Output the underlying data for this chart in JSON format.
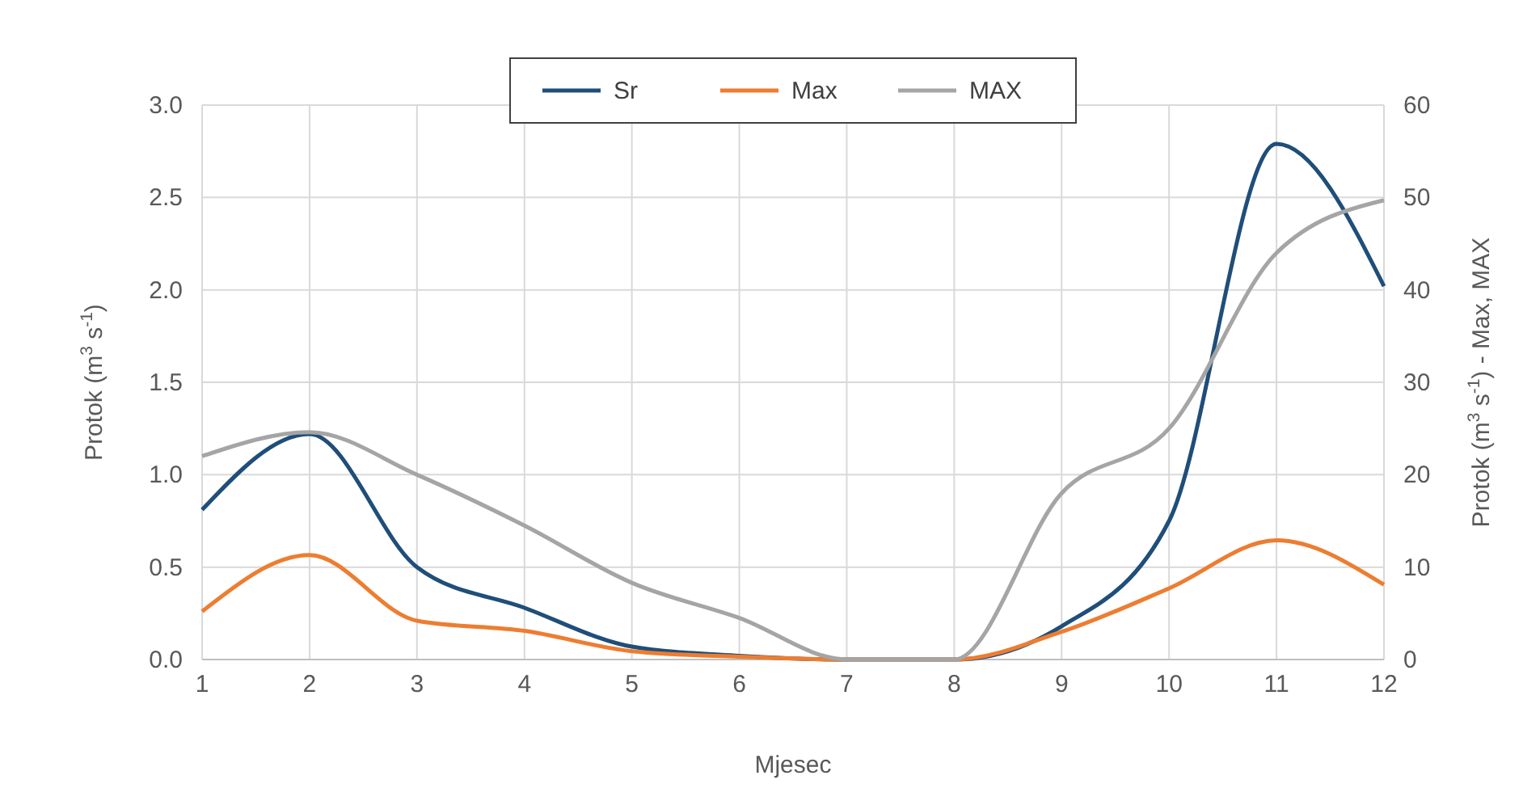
{
  "chart_data": {
    "type": "line",
    "xlabel": "Mjesec",
    "ylabel": "Protok (m$^{3}$ s$^{-1}$)",
    "y2label": "Protok (m$^{3}$ s$^{-1}$) - Max, MAX",
    "x": [
      1,
      2,
      3,
      4,
      5,
      6,
      7,
      8,
      9,
      10,
      11,
      12
    ],
    "xlim": [
      1,
      12
    ],
    "xticks": [
      1,
      2,
      3,
      4,
      5,
      6,
      7,
      8,
      9,
      10,
      11,
      12
    ],
    "ylim": [
      0,
      3
    ],
    "yticks": [
      {
        "value": 0,
        "label": "0.0"
      },
      {
        "value": 0.5,
        "label": "0.5"
      },
      {
        "value": 1,
        "label": "1.0"
      },
      {
        "value": 1.5,
        "label": "1.5"
      },
      {
        "value": 2,
        "label": "2.0"
      },
      {
        "value": 2.5,
        "label": "2.5"
      },
      {
        "value": 3,
        "label": "3.0"
      }
    ],
    "y2lim": [
      0,
      60
    ],
    "y2ticks": [
      0,
      10,
      20,
      30,
      40,
      50,
      60
    ],
    "grid": true,
    "legend": "top",
    "line_style": "solid",
    "series": [
      {
        "name": "Sr",
        "color": "#1f4e79",
        "values": [
          0.81,
          1.22,
          0.5,
          0.28,
          0.07,
          0.02,
          0,
          0,
          0.18,
          0.75,
          2.79,
          2.02
        ]
      },
      {
        "name": "Max",
        "color": "#ed7d31",
        "axis": "y2",
        "values": [
          5.2,
          11.3,
          4.2,
          3.1,
          0.9,
          0.3,
          0,
          0,
          3,
          7.7,
          12.9,
          8.1
        ]
      },
      {
        "name": "MAX",
        "color": "#a5a5a5",
        "axis": "y2",
        "values": [
          22,
          24.6,
          20,
          14.5,
          8.3,
          4.5,
          0,
          0,
          18,
          25,
          44,
          49.7
        ]
      }
    ]
  }
}
